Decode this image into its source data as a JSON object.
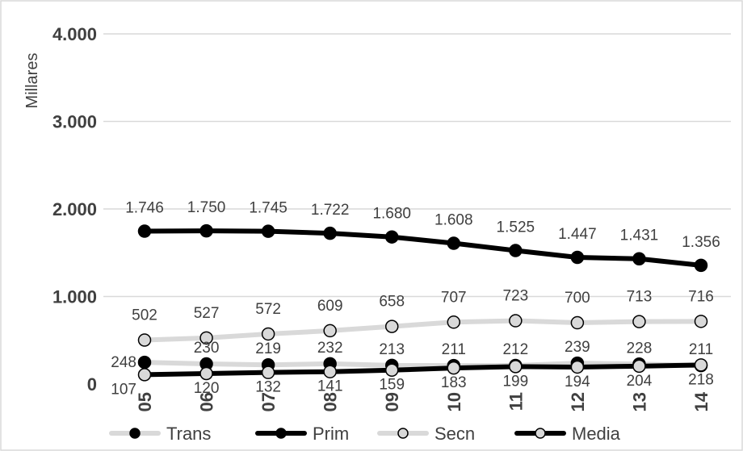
{
  "chart_data": {
    "type": "line",
    "categories": [
      "05",
      "06",
      "07",
      "08",
      "09",
      "10",
      "11",
      "12",
      "13",
      "14"
    ],
    "ylabel": "Millares",
    "ylim": [
      0,
      4000
    ],
    "yticks": [
      0,
      1000,
      2000,
      3000,
      4000
    ],
    "ytick_labels": [
      "0",
      "1.000",
      "2.000",
      "3.000",
      "4.000"
    ],
    "grid": true,
    "legend_position": "bottom",
    "series": [
      {
        "name": "Trans",
        "values": [
          248,
          230,
          219,
          232,
          213,
          211,
          212,
          239,
          228,
          211
        ],
        "labels": [
          "248",
          "230",
          "219",
          "232",
          "213",
          "211",
          "212",
          "239",
          "228",
          "211"
        ],
        "line_color": "#d9d9d9",
        "marker_fill": "#000000",
        "marker_stroke": "#000000"
      },
      {
        "name": "Prim",
        "values": [
          1746,
          1750,
          1745,
          1722,
          1680,
          1608,
          1525,
          1447,
          1431,
          1356
        ],
        "labels": [
          "1.746",
          "1.750",
          "1.745",
          "1.722",
          "1.680",
          "1.608",
          "1.525",
          "1.447",
          "1.431",
          "1.356"
        ],
        "line_color": "#000000",
        "marker_fill": "#000000",
        "marker_stroke": "#000000"
      },
      {
        "name": "Secn",
        "values": [
          502,
          527,
          572,
          609,
          658,
          707,
          723,
          700,
          713,
          716
        ],
        "labels": [
          "502",
          "527",
          "572",
          "609",
          "658",
          "707",
          "723",
          "700",
          "713",
          "716"
        ],
        "line_color": "#d9d9d9",
        "marker_fill": "#d9d9d9",
        "marker_stroke": "#000000"
      },
      {
        "name": "Media",
        "values": [
          107,
          120,
          132,
          141,
          159,
          183,
          199,
          194,
          204,
          218
        ],
        "labels": [
          "107",
          "120",
          "132",
          "141",
          "159",
          "183",
          "199",
          "194",
          "204",
          "218"
        ],
        "line_color": "#000000",
        "marker_fill": "#d9d9d9",
        "marker_stroke": "#000000"
      }
    ]
  }
}
